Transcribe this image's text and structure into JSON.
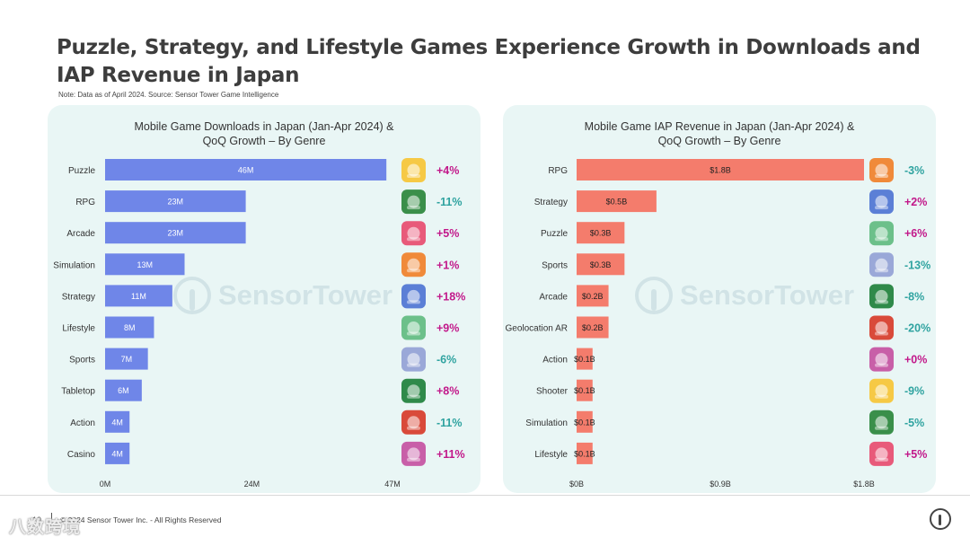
{
  "title": "Puzzle, Strategy, and Lifestyle Games Experience Growth in Downloads and IAP Revenue in Japan",
  "note": "Note: Data as of April 2024. Source: Sensor Tower Game Intelligence",
  "watermark": "SensorTower",
  "footer": {
    "page": "10",
    "copyright": "© 2024 Sensor Tower Inc. - All Rights Reserved",
    "corner_mark": "八数跨境"
  },
  "colors": {
    "panel_bg": "#e9f6f5",
    "downloads_bar": "#6f86e8",
    "revenue_bar": "#f47c6c",
    "growth_positive": "#c2188a",
    "growth_negative": "#2fa3a0"
  },
  "chart_data": [
    {
      "type": "bar",
      "orientation": "horizontal",
      "title_line1": "Mobile Game Downloads in Japan (Jan-Apr 2024) &",
      "title_line2": "QoQ Growth – By Genre",
      "categories": [
        "Puzzle",
        "RPG",
        "Arcade",
        "Simulation",
        "Strategy",
        "Lifestyle",
        "Sports",
        "Tabletop",
        "Action",
        "Casino"
      ],
      "values": [
        46,
        23,
        23,
        13,
        11,
        8,
        7,
        6,
        4,
        4
      ],
      "value_labels": [
        "46M",
        "23M",
        "23M",
        "13M",
        "11M",
        "8M",
        "7M",
        "6M",
        "4M",
        "4M"
      ],
      "growth": [
        "+4%",
        "-11%",
        "+5%",
        "+1%",
        "+18%",
        "+9%",
        "-6%",
        "+8%",
        "-11%",
        "+11%"
      ],
      "icons": [
        "puzzle-game-icon",
        "rpg-game-icon",
        "arcade-game-icon",
        "simulation-game-icon",
        "strategy-game-icon",
        "lifestyle-game-icon",
        "sports-game-icon",
        "tabletop-game-icon",
        "action-game-icon",
        "casino-game-icon"
      ],
      "xlim": [
        0,
        47
      ],
      "xticks": [
        "0M",
        "24M",
        "47M"
      ],
      "xtick_values": [
        0,
        24,
        47
      ]
    },
    {
      "type": "bar",
      "orientation": "horizontal",
      "title_line1": "Mobile Game IAP Revenue in Japan (Jan-Apr 2024) &",
      "title_line2": "QoQ Growth – By Genre",
      "categories": [
        "RPG",
        "Strategy",
        "Puzzle",
        "Sports",
        "Arcade",
        "Geolocation AR",
        "Action",
        "Shooter",
        "Simulation",
        "Lifestyle"
      ],
      "values": [
        1.8,
        0.5,
        0.3,
        0.3,
        0.2,
        0.2,
        0.1,
        0.1,
        0.1,
        0.1
      ],
      "value_labels": [
        "$1.8B",
        "$0.5B",
        "$0.3B",
        "$0.3B",
        "$0.2B",
        "$0.2B",
        "$0.1B",
        "$0.1B",
        "$0.1B",
        "$0.1B"
      ],
      "growth": [
        "-3%",
        "+2%",
        "+6%",
        "-13%",
        "-8%",
        "-20%",
        "+0%",
        "-9%",
        "-5%",
        "+5%"
      ],
      "icons": [
        "rpg-game-icon",
        "strategy-game-icon",
        "puzzle-game-icon",
        "sports-game-icon",
        "arcade-game-icon",
        "geolocation-ar-game-icon",
        "action-game-icon",
        "shooter-game-icon",
        "simulation-game-icon",
        "lifestyle-game-icon"
      ],
      "xlim": [
        0,
        1.8
      ],
      "xticks": [
        "$0B",
        "$0.9B",
        "$1.8B"
      ],
      "xtick_values": [
        0,
        0.9,
        1.8
      ]
    }
  ]
}
